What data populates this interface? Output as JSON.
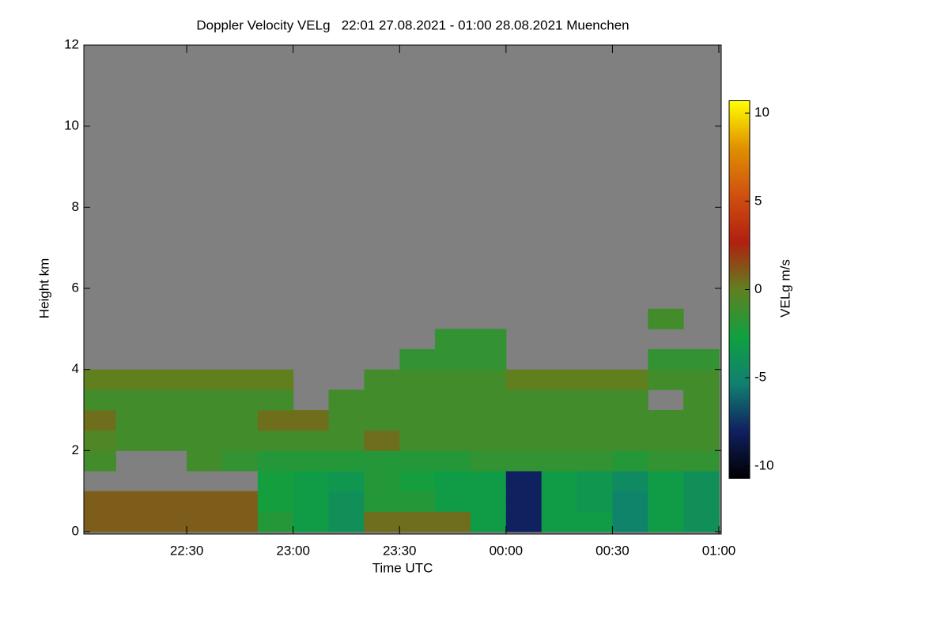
{
  "chart_data": {
    "type": "heatmap",
    "title": "Doppler Velocity VELg   22:01 27.08.2021 - 01:00 28.08.2021 Muenchen",
    "xlabel": "Time UTC",
    "ylabel": "Height km",
    "colorbar_label": "VELg m/s",
    "background": "#808080",
    "xlim": [
      "22:01",
      "01:00"
    ],
    "xticks": [
      "22:30",
      "23:00",
      "23:30",
      "00:00",
      "00:30",
      "01:00"
    ],
    "ylim": [
      0,
      12
    ],
    "yticks": [
      0,
      2,
      4,
      6,
      8,
      10,
      12
    ],
    "zlim": [
      -10.7,
      10.7
    ],
    "zticks": [
      -10,
      -5,
      0,
      5,
      10
    ],
    "colors": [
      "#000000",
      "#102060",
      "#108070",
      "#10a040",
      "#608020",
      "#b02010",
      "#d05010",
      "#e09000",
      "#ffff00"
    ],
    "x_bins": [
      "22:01",
      "22:10",
      "22:20",
      "22:30",
      "22:40",
      "22:50",
      "23:00",
      "23:10",
      "23:20",
      "23:30",
      "23:40",
      "23:50",
      "00:00",
      "00:10",
      "00:20",
      "00:30",
      "00:40",
      "00:50",
      "01:00"
    ],
    "y_bins": [
      0,
      0.5,
      1,
      1.5,
      2,
      2.5,
      3,
      3.5,
      4,
      4.5,
      5,
      5.5,
      6
    ],
    "z": [
      [
        1,
        1,
        1,
        1,
        1,
        -2,
        -3,
        -4,
        0.5,
        0.5,
        0.5,
        -3,
        -8,
        -3,
        -3,
        -5,
        -3,
        -4
      ],
      [
        1,
        1,
        1,
        1,
        1,
        -2.5,
        -3,
        -4,
        -2,
        -2,
        -3,
        -3,
        -8,
        -3,
        -3.5,
        -5,
        -3,
        -4
      ],
      [
        null,
        null,
        null,
        null,
        null,
        -2.5,
        -3,
        -3.5,
        -2,
        -2.5,
        -3,
        -3,
        -8,
        -3,
        -3.5,
        -4.5,
        -3,
        -4
      ],
      [
        -1,
        null,
        null,
        -1,
        -1.5,
        -2,
        -2,
        -2,
        -2,
        -2,
        -2,
        -1.5,
        -1.5,
        -1.5,
        -1.5,
        -2,
        -1.5,
        -1.5
      ],
      [
        -0.5,
        -1,
        -1,
        -1,
        -1,
        -1,
        -1,
        -1,
        0.5,
        -1,
        -1,
        -1,
        -1,
        -1,
        -1,
        -1,
        -1,
        -1
      ],
      [
        0.5,
        -1,
        -1,
        -1,
        -1,
        0.5,
        0.5,
        -1,
        -1,
        -1,
        -1,
        -1,
        -1,
        -1,
        -1,
        -1,
        -1,
        -1
      ],
      [
        -1,
        -1,
        -1,
        -1,
        -1,
        -1,
        null,
        -1,
        -1,
        -1,
        -1,
        -1,
        -1,
        -1,
        -1,
        -1,
        null,
        -1
      ],
      [
        0,
        0,
        0,
        0,
        0,
        0,
        null,
        null,
        -1,
        -1,
        -1,
        -1,
        0,
        0,
        0,
        0,
        -1,
        -1
      ],
      [
        null,
        null,
        null,
        null,
        null,
        null,
        null,
        null,
        null,
        -1.5,
        -1.5,
        -1.5,
        null,
        null,
        null,
        null,
        -1.5,
        -1.5
      ],
      [
        null,
        null,
        null,
        null,
        null,
        null,
        null,
        null,
        null,
        null,
        -1.5,
        -1.5,
        null,
        null,
        null,
        null,
        null,
        null
      ],
      [
        null,
        null,
        null,
        null,
        null,
        null,
        null,
        null,
        null,
        null,
        null,
        null,
        null,
        null,
        null,
        null,
        -1,
        null
      ],
      [
        null,
        null,
        null,
        null,
        null,
        null,
        null,
        null,
        null,
        null,
        null,
        null,
        null,
        null,
        null,
        null,
        null,
        null
      ]
    ]
  }
}
